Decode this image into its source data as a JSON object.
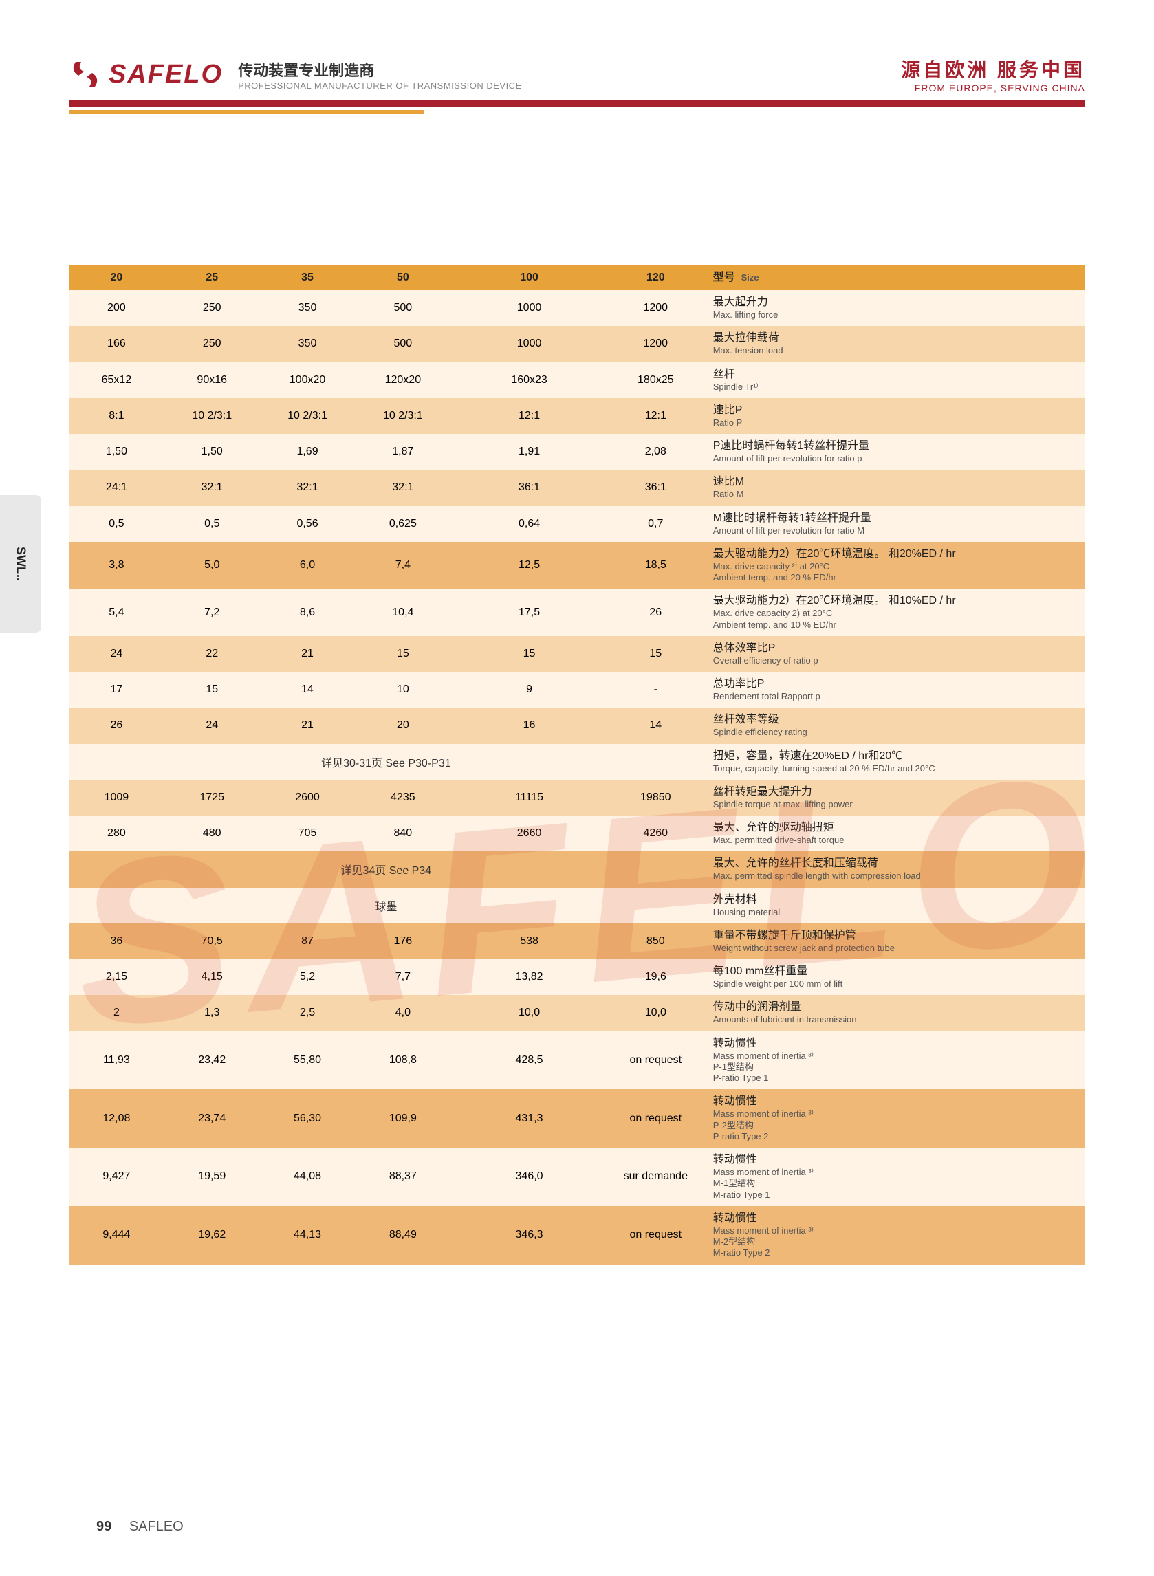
{
  "header": {
    "brand": "SAFELO",
    "tagline_cn_1": "传动装置",
    "tagline_cn_2": "专业制造商",
    "tagline_en": "PROFESSIONAL MANUFACTURER OF TRANSMISSION DEVICE",
    "slogan_cn": "源自欧洲  服务中国",
    "slogan_en": "FROM EUROPE, SERVING CHINA"
  },
  "side_tab": "SWL..",
  "watermark": "SAFELO",
  "footer": {
    "page": "99",
    "brand": "SAFLEO"
  },
  "colors": {
    "brand_red": "#a81f2d",
    "accent_orange": "#e8a23a",
    "row_light": "#fff3e6",
    "row_med": "#f8d6ac",
    "row_dark": "#efb877",
    "text": "#222222",
    "subtext": "#555555",
    "page_bg": "#ffffff"
  },
  "table": {
    "header_label_cn": "型号",
    "header_label_en": "Size",
    "columns": [
      "20",
      "25",
      "35",
      "50",
      "100",
      "120"
    ],
    "rows": [
      {
        "tone": "light",
        "vals": [
          "200",
          "250",
          "350",
          "500",
          "1000",
          "1200"
        ],
        "cn": "最大起升力",
        "en": "Max. lifting force"
      },
      {
        "tone": "med",
        "vals": [
          "166",
          "250",
          "350",
          "500",
          "1000",
          "1200"
        ],
        "cn": "最大拉伸载荷",
        "en": "Max. tension load"
      },
      {
        "tone": "light",
        "vals": [
          "65x12",
          "90x16",
          "100x20",
          "120x20",
          "160x23",
          "180x25"
        ],
        "cn": "丝杆",
        "en": "Spindle Tr¹⁾"
      },
      {
        "tone": "med",
        "vals": [
          "8:1",
          "10 2/3:1",
          "10 2/3:1",
          "10 2/3:1",
          "12:1",
          "12:1"
        ],
        "cn": "速比P",
        "en": "Ratio P"
      },
      {
        "tone": "light",
        "vals": [
          "1,50",
          "1,50",
          "1,69",
          "1,87",
          "1,91",
          "2,08"
        ],
        "cn": "P速比时蜗杆每转1转丝杆提升量",
        "en": "Amount of lift per revolution for ratio p"
      },
      {
        "tone": "med",
        "vals": [
          "24:1",
          "32:1",
          "32:1",
          "32:1",
          "36:1",
          "36:1"
        ],
        "cn": "速比M",
        "en": "Ratio M"
      },
      {
        "tone": "light",
        "vals": [
          "0,5",
          "0,5",
          "0,56",
          "0,625",
          "0,64",
          "0,7"
        ],
        "cn": "M速比时蜗杆每转1转丝杆提升量",
        "en": "Amount of lift per revolution for ratio M"
      },
      {
        "tone": "dark",
        "vals": [
          "3,8",
          "5,0",
          "6,0",
          "7,4",
          "12,5",
          "18,5"
        ],
        "cn": "最大驱动能力2）在20℃环境温度。 和20%ED / hr",
        "en": "Max. drive capacity ²⁾ at 20°C\nAmbient temp. and 20 % ED/hr"
      },
      {
        "tone": "light",
        "vals": [
          "5,4",
          "7,2",
          "8,6",
          "10,4",
          "17,5",
          "26"
        ],
        "cn": "最大驱动能力2）在20℃环境温度。 和10%ED / hr",
        "en": "Max. drive capacity 2) at 20°C\nAmbient temp. and 10 % ED/hr"
      },
      {
        "tone": "med",
        "vals": [
          "24",
          "22",
          "21",
          "15",
          "15",
          "15"
        ],
        "cn": "总体效率比P",
        "en": "Overall efficiency of ratio p"
      },
      {
        "tone": "light",
        "vals": [
          "17",
          "15",
          "14",
          "10",
          "9",
          "-"
        ],
        "cn": "总功率比P",
        "en": "Rendement total Rapport p"
      },
      {
        "tone": "med",
        "vals": [
          "26",
          "24",
          "21",
          "20",
          "16",
          "14"
        ],
        "cn": "丝杆效率等级",
        "en": "Spindle efficiency rating"
      },
      {
        "tone": "light",
        "span": "详见30-31页   See P30-P31",
        "cn": "扭矩，容量，转速在20%ED / hr和20℃",
        "en": "Torque, capacity, turning-speed at 20 % ED/hr and 20°C"
      },
      {
        "tone": "med",
        "vals": [
          "1009",
          "1725",
          "2600",
          "4235",
          "11115",
          "19850"
        ],
        "cn": "丝杆转矩最大提升力",
        "en": "Spindle torque at max. lifting power"
      },
      {
        "tone": "light",
        "vals": [
          "280",
          "480",
          "705",
          "840",
          "2660",
          "4260"
        ],
        "cn": "最大、允许的驱动轴扭矩",
        "en": "Max. permitted drive-shaft torque"
      },
      {
        "tone": "dark",
        "span": "详见34页   See P34",
        "cn": "最大、允许的丝杆长度和压缩载荷",
        "en": "Max. permitted spindle length with compression load"
      },
      {
        "tone": "light",
        "span": "球墨",
        "cn": "外壳材料",
        "en": "Housing material"
      },
      {
        "tone": "dark",
        "vals": [
          "36",
          "70,5",
          "87",
          "176",
          "538",
          "850"
        ],
        "cn": "重量不带螺旋千斤顶和保护管",
        "en": "Weight without screw jack and protection tube"
      },
      {
        "tone": "light",
        "vals": [
          "2,15",
          "4,15",
          "5,2",
          "7,7",
          "13,82",
          "19,6"
        ],
        "cn": "每100 mm丝杆重量",
        "en": "Spindle weight per 100 mm of lift"
      },
      {
        "tone": "med",
        "vals": [
          "2",
          "1,3",
          "2,5",
          "4,0",
          "10,0",
          "10,0"
        ],
        "cn": "传动中的润滑剂量",
        "en": "Amounts of lubricant in transmission"
      },
      {
        "tone": "light",
        "vals": [
          "11,93",
          "23,42",
          "55,80",
          "108,8",
          "428,5",
          "on request"
        ],
        "cn": "转动惯性",
        "en": "Mass moment of inertia ³⁾\nP-1型结构\nP-ratio Type 1"
      },
      {
        "tone": "dark",
        "vals": [
          "12,08",
          "23,74",
          "56,30",
          "109,9",
          "431,3",
          "on request"
        ],
        "cn": "转动惯性",
        "en": "Mass moment of inertia ³⁾\nP-2型结构\nP-ratio Type 2"
      },
      {
        "tone": "light",
        "vals": [
          "9,427",
          "19,59",
          "44,08",
          "88,37",
          "346,0",
          "sur demande"
        ],
        "cn": "转动惯性",
        "en": "Mass moment of inertia ³⁾\nM-1型结构\nM-ratio Type 1"
      },
      {
        "tone": "dark",
        "vals": [
          "9,444",
          "19,62",
          "44,13",
          "88,49",
          "346,3",
          "on request"
        ],
        "cn": "转动惯性",
        "en": "Mass moment of inertia ³⁾\nM-2型结构\nM-ratio Type 2"
      }
    ]
  }
}
